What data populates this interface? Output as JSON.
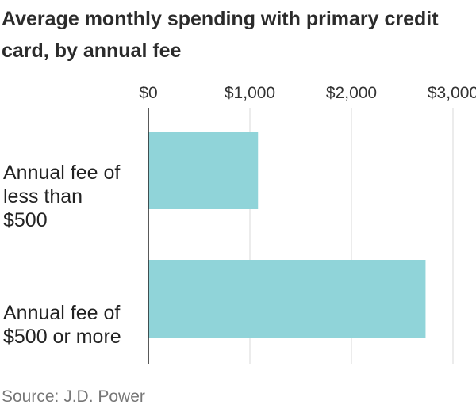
{
  "title": "Average monthly spending with primary credit card, by annual fee",
  "source": "Source: J.D. Power",
  "colors": {
    "bar": "#90d4d9",
    "grid": "#d9d9d9",
    "axis": "#222222"
  },
  "chart_data": {
    "type": "bar",
    "orientation": "horizontal",
    "title": "Average monthly spending with primary credit card, by annual fee",
    "categories": [
      "Annual fee of less than $500",
      "Annual fee of $500 or more"
    ],
    "values": [
      1080,
      2730
    ],
    "xlim": [
      0,
      3000
    ],
    "ticks": [
      0,
      1000,
      2000,
      3000
    ],
    "tick_labels": [
      "$0",
      "$1,000",
      "$2,000",
      "$3,000"
    ],
    "tick_position": "top",
    "grid": true
  }
}
